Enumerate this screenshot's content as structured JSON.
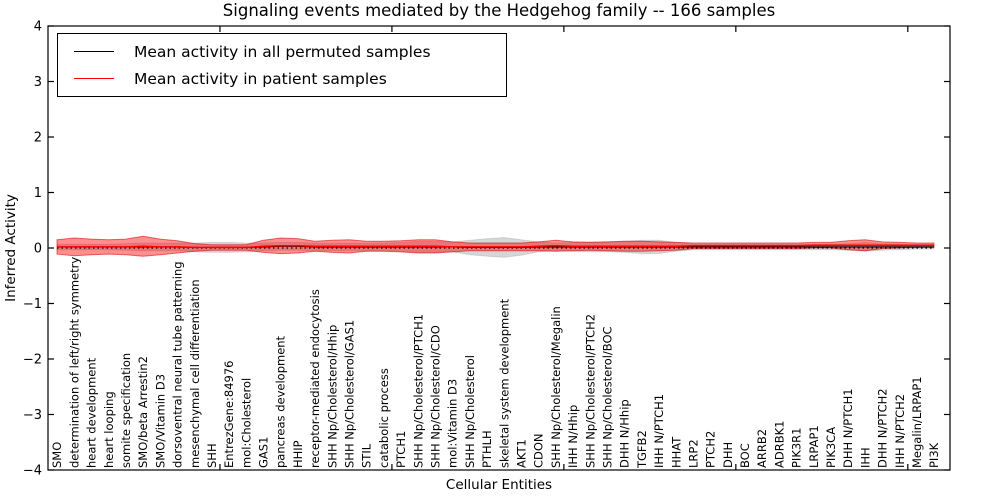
{
  "legend": {
    "items": [
      {
        "label": "Mean activity in all permuted samples",
        "color": "#000000"
      },
      {
        "label": "Mean activity in patient samples",
        "color": "#ff0000"
      }
    ]
  },
  "chart_data": {
    "type": "line",
    "title": "Signaling events mediated by the Hedgehog family -- 166 samples",
    "xlabel": "Cellular Entities",
    "ylabel": "Inferred Activity",
    "ylim": [
      -4,
      4
    ],
    "yticks": [
      4,
      3,
      2,
      1,
      0,
      -1,
      -2,
      -3,
      -4
    ],
    "ytick_labels": [
      "4",
      "3",
      "2",
      "1",
      "0",
      "−1",
      "−2",
      "−3",
      "−4"
    ],
    "grid": false,
    "legend_position": "upper left",
    "categories": [
      "SMO",
      "determination of left/right symmetry",
      "heart development",
      "heart looping",
      "somite specification",
      "SMO/beta Arrestin2",
      "SMO/Vitamin D3",
      "dorsoventral neural tube patterning",
      "mesenchymal cell differentiation",
      "SHH",
      "EntrezGene:84976",
      "mol:Cholesterol",
      "GAS1",
      "pancreas development",
      "HHIP",
      "receptor-mediated endocytosis",
      "SHH Np/Cholesterol/Hhip",
      "SHH Np/Cholesterol/GAS1",
      "STIL",
      "catabolic process",
      "PTCH1",
      "SHH Np/Cholesterol/PTCH1",
      "SHH Np/Cholesterol/CDO",
      "mol:Vitamin D3",
      "SHH Np/Cholesterol",
      "PTHLH",
      "skeletal system development",
      "AKT1",
      "CDON",
      "SHH Np/Cholesterol/Megalin",
      "IHH N/Hhip",
      "SHH Np/Cholesterol/PTCH2",
      "SHH Np/Cholesterol/BOC",
      "DHH N/Hhip",
      "TGFB2",
      "IHH N/PTCH1",
      "HHAT",
      "LRP2",
      "PTCH2",
      "DHH",
      "BOC",
      "ARRB2",
      "ADRBK1",
      "PIK3R1",
      "LRPAP1",
      "PIK3CA",
      "DHH N/PTCH1",
      "IHH",
      "DHH N/PTCH2",
      "IHH N/PTCH2",
      "Megalin/LRPAP1",
      "PI3K"
    ],
    "zero_line": {
      "value": 0,
      "color": "#000000",
      "style": "dotted"
    },
    "series": [
      {
        "name": "Mean activity in all permuted samples",
        "type": "mean-line",
        "color": "#000000",
        "values": [
          0.02,
          0.02,
          0.02,
          0.02,
          0.02,
          0.02,
          0.02,
          0.02,
          0.01,
          0.01,
          0.01,
          0.01,
          0.02,
          0.03,
          0.03,
          0.02,
          0.02,
          0.02,
          0.02,
          0.02,
          0.02,
          0.02,
          0.02,
          0.02,
          0.01,
          0.01,
          0.01,
          0.01,
          0.02,
          0.02,
          0.02,
          0.02,
          0.02,
          0.02,
          0.02,
          0.02,
          0.02,
          0.02,
          0.02,
          0.02,
          0.02,
          0.02,
          0.02,
          0.02,
          0.02,
          0.02,
          0.02,
          0.02,
          0.02,
          0.02,
          0.02,
          0.02
        ]
      },
      {
        "name": "Mean activity in patient samples",
        "type": "mean-line",
        "color": "#ff0000",
        "values": [
          0.02,
          0.02,
          0.02,
          0.02,
          0.02,
          0.03,
          0.02,
          0.02,
          0.01,
          0.01,
          0.01,
          0.01,
          0.03,
          0.04,
          0.04,
          0.03,
          0.03,
          0.03,
          0.03,
          0.03,
          0.03,
          0.03,
          0.03,
          0.02,
          0.02,
          0.02,
          0.02,
          0.02,
          0.03,
          0.04,
          0.03,
          0.03,
          0.03,
          0.03,
          0.03,
          0.03,
          0.03,
          0.04,
          0.04,
          0.04,
          0.04,
          0.04,
          0.04,
          0.04,
          0.05,
          0.05,
          0.05,
          0.05,
          0.05,
          0.05,
          0.05,
          0.05
        ]
      },
      {
        "name": "Permuted samples spread (band half-width)",
        "type": "band",
        "center": "Mean activity in all permuted samples",
        "fill": "rgba(0,0,0,0.16)",
        "stroke": "rgba(0,0,0,0.10)",
        "values": [
          0.05,
          0.05,
          0.05,
          0.05,
          0.06,
          0.07,
          0.07,
          0.07,
          0.08,
          0.09,
          0.09,
          0.08,
          0.07,
          0.07,
          0.07,
          0.07,
          0.07,
          0.07,
          0.07,
          0.07,
          0.08,
          0.1,
          0.1,
          0.09,
          0.13,
          0.16,
          0.18,
          0.14,
          0.09,
          0.07,
          0.08,
          0.09,
          0.09,
          0.1,
          0.12,
          0.12,
          0.08,
          0.05,
          0.05,
          0.05,
          0.05,
          0.05,
          0.05,
          0.05,
          0.05,
          0.05,
          0.06,
          0.08,
          0.06,
          0.05,
          0.04,
          0.04
        ]
      },
      {
        "name": "Patient samples spread (band half-width)",
        "type": "band",
        "center": "Mean activity in patient samples",
        "fill": "rgba(255,0,0,0.44)",
        "stroke": "rgba(204,0,0,0.55)",
        "values": [
          0.13,
          0.16,
          0.14,
          0.13,
          0.14,
          0.18,
          0.14,
          0.11,
          0.07,
          0.05,
          0.05,
          0.05,
          0.11,
          0.14,
          0.13,
          0.09,
          0.11,
          0.12,
          0.09,
          0.09,
          0.1,
          0.12,
          0.12,
          0.09,
          0.07,
          0.07,
          0.07,
          0.07,
          0.08,
          0.1,
          0.08,
          0.07,
          0.08,
          0.09,
          0.09,
          0.08,
          0.07,
          0.05,
          0.05,
          0.05,
          0.05,
          0.05,
          0.05,
          0.05,
          0.05,
          0.05,
          0.08,
          0.1,
          0.06,
          0.05,
          0.04,
          0.04
        ]
      }
    ]
  }
}
